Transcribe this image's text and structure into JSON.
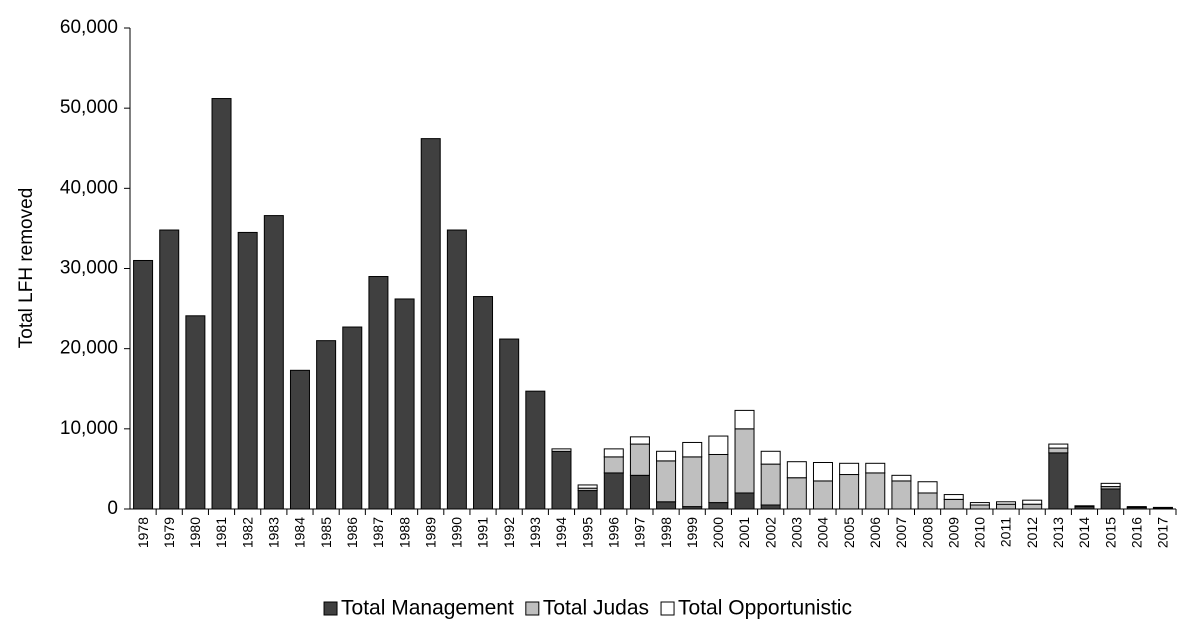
{
  "chart_data": {
    "type": "stacked_bar",
    "y_label": "Total LFH removed",
    "categories": [
      "1978",
      "1979",
      "1980",
      "1981",
      "1982",
      "1983",
      "1984",
      "1985",
      "1986",
      "1987",
      "1988",
      "1989",
      "1990",
      "1991",
      "1992",
      "1993",
      "1994",
      "1995",
      "1996",
      "1997",
      "1998",
      "1999",
      "2000",
      "2001",
      "2002",
      "2003",
      "2004",
      "2005",
      "2006",
      "2007",
      "2008",
      "2009",
      "2010",
      "2011",
      "2012",
      "2013",
      "2014",
      "2015",
      "2016",
      "2017"
    ],
    "series": [
      {
        "name": "Total Management",
        "color": "#404040",
        "values": [
          31000,
          34800,
          24100,
          51200,
          34500,
          36600,
          17300,
          21000,
          22700,
          29000,
          26200,
          46200,
          34800,
          26500,
          21200,
          14700,
          7200,
          2300,
          4500,
          4200,
          900,
          300,
          800,
          2000,
          500,
          0,
          0,
          0,
          0,
          0,
          0,
          0,
          0,
          0,
          0,
          7000,
          300,
          2500,
          200,
          100
        ]
      },
      {
        "name": "Total Judas",
        "color": "#bfbfbf",
        "values": [
          0,
          0,
          0,
          0,
          0,
          0,
          0,
          0,
          0,
          0,
          0,
          0,
          0,
          0,
          0,
          0,
          0,
          300,
          2000,
          3900,
          5100,
          6200,
          6000,
          8000,
          5100,
          3900,
          3500,
          4300,
          4500,
          3500,
          2000,
          1200,
          500,
          600,
          600,
          600,
          0,
          300,
          0,
          0
        ]
      },
      {
        "name": "Total Opportunistic",
        "color": "#ffffff",
        "values": [
          0,
          0,
          0,
          0,
          0,
          0,
          0,
          0,
          0,
          0,
          0,
          0,
          0,
          0,
          0,
          0,
          300,
          400,
          1000,
          900,
          1200,
          1800,
          2300,
          2300,
          1600,
          2000,
          2300,
          1400,
          1200,
          700,
          1400,
          600,
          300,
          300,
          500,
          500,
          100,
          400,
          100,
          100
        ]
      }
    ],
    "ylim": [
      0,
      60000
    ],
    "yticks": [
      0,
      {
        "value": 10000,
        "label": "10,000"
      },
      {
        "value": 20000,
        "label": "20,000"
      },
      {
        "value": 30000,
        "label": "30,000"
      },
      {
        "value": 40000,
        "label": "40,000"
      },
      {
        "value": 50000,
        "label": "50,000"
      },
      {
        "value": 60000,
        "label": "60,000"
      }
    ],
    "legend": "bottom"
  }
}
